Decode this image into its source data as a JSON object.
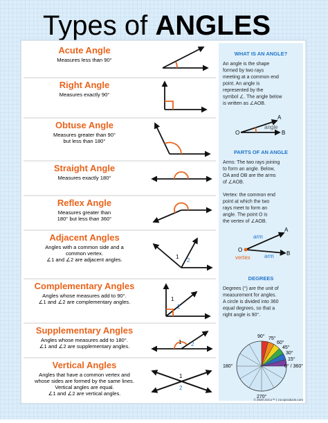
{
  "title": {
    "prefix": "Types of",
    "emphasis": "ANGLES"
  },
  "angles": [
    {
      "name": "Acute Angle",
      "description": [
        "Measures less than 90°"
      ]
    },
    {
      "name": "Right Angle",
      "description": [
        "Measures exactly 90°"
      ]
    },
    {
      "name": "Obtuse Angle",
      "description": [
        "Measures greater than 90°",
        "but less than 180°"
      ]
    },
    {
      "name": "Straight Angle",
      "description": [
        "Measures exactly 180°"
      ]
    },
    {
      "name": "Reflex Angle",
      "description": [
        "Measures greater than",
        "180° but less than 360°"
      ]
    },
    {
      "name": "Adjacent Angles",
      "description": [
        "Angles with a common side and a",
        "common vertex.",
        "∠1 and ∠2 are adjacent angles."
      ],
      "labels": [
        "1",
        "2"
      ]
    },
    {
      "name": "Complementary Angles",
      "description": [
        "Angles whose measures add to 90°.",
        "∠1 and ∠2 are complementary angles."
      ],
      "labels": [
        "1",
        "2"
      ]
    },
    {
      "name": "Supplementary Angles",
      "description": [
        "Angles whose measures add to 180°.",
        "∠1 and ∠2 are supplementary angles."
      ],
      "labels": [
        "1",
        "2"
      ]
    },
    {
      "name": "Vertical Angles",
      "description": [
        "Angles that have a common vertex and",
        "whose sides are formed by the same lines.",
        "Vertical angles are equal.",
        "∠1 and ∠2 are vertical angles."
      ],
      "labels": [
        "1",
        "2"
      ]
    }
  ],
  "sidebar": {
    "what": {
      "heading": "WHAT IS AN ANGLE?",
      "lines": [
        "An angle is the shape",
        "formed by two rays",
        "meeting at a common end",
        "point. An angle is",
        "represented by the",
        "symbol ∠. The angle below",
        "is written as ∠AOB."
      ],
      "labels": [
        "A",
        "O",
        "B",
        "angle"
      ]
    },
    "parts": {
      "heading": "PARTS OF AN ANGLE",
      "arms": [
        "Arms: The two rays joining",
        "to form an angle. Below,",
        "OA and OB are the arms",
        "of ∠AOB."
      ],
      "vertex": [
        "Vertex: the common end",
        "point at which the two",
        "rays meet to form an",
        "angle. The point O is",
        "the vertex of ∠AOB."
      ],
      "labels": [
        "A",
        "arm",
        "arm",
        "O",
        "vertex",
        "B"
      ]
    },
    "degrees": {
      "heading": "DEGREES",
      "lines": [
        "Degrees (°) are the unit of",
        "measurement for angles.",
        "A circle is divided into 360",
        "equal degrees, so that a",
        "right angle is 90°."
      ],
      "labels": [
        "90°",
        "75°",
        "60°",
        "45°",
        "30°",
        "15°",
        "0° / 360°",
        "180°",
        "270°"
      ]
    }
  },
  "footer": "© 2020 ZoCo™ | zocoproducts.com"
}
